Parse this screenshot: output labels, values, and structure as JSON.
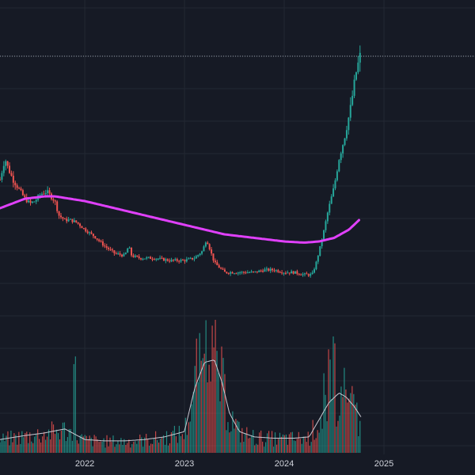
{
  "chart_data": {
    "type": "candlestick",
    "xlabel": "",
    "ylabel": "",
    "x_ticks": [
      {
        "label": "2022",
        "t": 2022.0
      },
      {
        "label": "2023",
        "t": 2023.0
      },
      {
        "label": "2024",
        "t": 2024.0
      },
      {
        "label": "2025",
        "t": 2025.0
      }
    ],
    "xlim": [
      2021.15,
      2025.77
    ],
    "ylim": [
      0,
      100
    ],
    "volume_ylim": [
      0,
      100
    ],
    "grid": true,
    "colors": {
      "background": "#161a25",
      "grid": "#232833",
      "up": "#26a69a",
      "down": "#ef5350",
      "moving_average": "#e040fb",
      "volume_average": "#c9c9d2",
      "last_price_line": "#9aa0ab"
    },
    "price_keypoints": [
      [
        2021.15,
        45
      ],
      [
        2021.2,
        54
      ],
      [
        2021.23,
        50
      ],
      [
        2021.28,
        45
      ],
      [
        2021.34,
        41
      ],
      [
        2021.4,
        37
      ],
      [
        2021.45,
        35
      ],
      [
        2021.5,
        36
      ],
      [
        2021.56,
        39
      ],
      [
        2021.62,
        40
      ],
      [
        2021.66,
        38
      ],
      [
        2021.7,
        36
      ],
      [
        2021.74,
        30
      ],
      [
        2021.8,
        28
      ],
      [
        2021.86,
        28
      ],
      [
        2021.92,
        27
      ],
      [
        2022.0,
        24
      ],
      [
        2022.1,
        21
      ],
      [
        2022.2,
        17
      ],
      [
        2022.3,
        14
      ],
      [
        2022.4,
        13
      ],
      [
        2022.44,
        17
      ],
      [
        2022.47,
        13
      ],
      [
        2022.55,
        12
      ],
      [
        2022.7,
        12
      ],
      [
        2022.85,
        11
      ],
      [
        2023.0,
        11
      ],
      [
        2023.1,
        12
      ],
      [
        2023.18,
        15
      ],
      [
        2023.22,
        20
      ],
      [
        2023.26,
        15
      ],
      [
        2023.3,
        10
      ],
      [
        2023.4,
        6
      ],
      [
        2023.5,
        6
      ],
      [
        2023.6,
        6
      ],
      [
        2023.7,
        6
      ],
      [
        2023.8,
        7
      ],
      [
        2023.9,
        7
      ],
      [
        2024.0,
        6
      ],
      [
        2024.1,
        6
      ],
      [
        2024.2,
        5
      ],
      [
        2024.28,
        5
      ],
      [
        2024.32,
        10
      ],
      [
        2024.38,
        20
      ],
      [
        2024.44,
        32
      ],
      [
        2024.5,
        42
      ],
      [
        2024.55,
        54
      ],
      [
        2024.6,
        62
      ],
      [
        2024.66,
        74
      ],
      [
        2024.72,
        90
      ],
      [
        2024.76,
        97
      ]
    ],
    "moving_average": [
      [
        2021.15,
        33
      ],
      [
        2021.4,
        37
      ],
      [
        2021.6,
        38
      ],
      [
        2021.7,
        38
      ],
      [
        2021.85,
        37
      ],
      [
        2022.0,
        36
      ],
      [
        2022.2,
        34
      ],
      [
        2022.4,
        32
      ],
      [
        2022.6,
        30
      ],
      [
        2022.8,
        28
      ],
      [
        2023.0,
        26
      ],
      [
        2023.2,
        24
      ],
      [
        2023.4,
        22
      ],
      [
        2023.6,
        21
      ],
      [
        2023.8,
        20
      ],
      [
        2024.0,
        19
      ],
      [
        2024.2,
        18.5
      ],
      [
        2024.35,
        19
      ],
      [
        2024.5,
        20.5
      ],
      [
        2024.65,
        24
      ],
      [
        2024.75,
        28
      ]
    ],
    "volume_average": [
      [
        2021.15,
        10
      ],
      [
        2021.4,
        13
      ],
      [
        2021.6,
        15
      ],
      [
        2021.8,
        18
      ],
      [
        2022.0,
        10
      ],
      [
        2022.2,
        9
      ],
      [
        2022.4,
        9
      ],
      [
        2022.6,
        10
      ],
      [
        2022.8,
        12
      ],
      [
        2023.0,
        16
      ],
      [
        2023.1,
        48
      ],
      [
        2023.2,
        68
      ],
      [
        2023.3,
        70
      ],
      [
        2023.38,
        52
      ],
      [
        2023.45,
        30
      ],
      [
        2023.55,
        16
      ],
      [
        2023.7,
        12
      ],
      [
        2023.9,
        11
      ],
      [
        2024.1,
        11
      ],
      [
        2024.25,
        12
      ],
      [
        2024.35,
        25
      ],
      [
        2024.45,
        38
      ],
      [
        2024.55,
        45
      ],
      [
        2024.62,
        42
      ],
      [
        2024.7,
        35
      ],
      [
        2024.77,
        27
      ]
    ],
    "volume_spikes": [
      [
        2021.9,
        74
      ],
      [
        2023.12,
        89
      ],
      [
        2023.15,
        98
      ],
      [
        2023.18,
        76
      ],
      [
        2023.22,
        60
      ],
      [
        2023.26,
        55
      ],
      [
        2024.45,
        78
      ],
      [
        2024.5,
        95
      ],
      [
        2024.4,
        62
      ],
      [
        2024.6,
        66
      ],
      [
        2024.68,
        58
      ]
    ]
  }
}
